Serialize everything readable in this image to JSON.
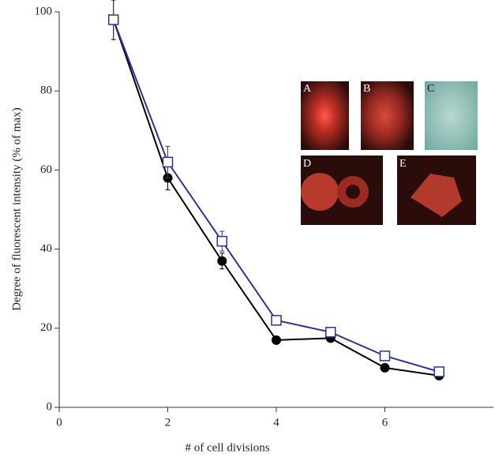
{
  "chart_data": {
    "type": "line",
    "x_label": "# of cell divisions",
    "y_label": "Degree of fluorescent intensity (% of max)",
    "x": [
      1,
      2,
      3,
      4,
      5,
      6,
      7
    ],
    "series": [
      {
        "color": "#000000",
        "marker": "circle",
        "values": [
          98,
          58,
          37,
          17,
          17.5,
          10,
          8
        ],
        "errors": [
          5,
          3,
          2,
          null,
          null,
          null,
          null
        ]
      },
      {
        "color": "#2b3590",
        "marker": "square",
        "values": [
          98,
          62,
          42,
          22,
          19,
          13,
          9
        ],
        "errors": [
          null,
          4,
          2.5,
          null,
          null,
          null,
          null
        ]
      }
    ],
    "xlim": [
      0,
      8
    ],
    "xticks": [
      0,
      2,
      4,
      6
    ],
    "ylim": [
      0,
      100
    ],
    "yticks": [
      0,
      20,
      40,
      60,
      80,
      100
    ],
    "inset_panels": [
      "A",
      "B",
      "C",
      "D",
      "E"
    ]
  }
}
